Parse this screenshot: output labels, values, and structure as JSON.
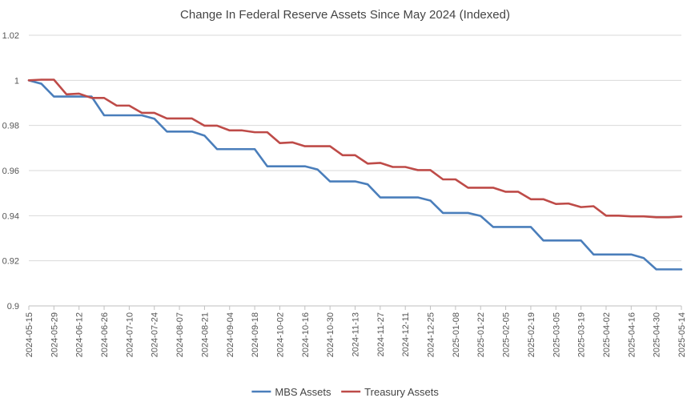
{
  "chart_data": {
    "type": "line",
    "title": "Change In Federal Reserve Assets Since May 2024 (Indexed)",
    "xlabel": "",
    "ylabel": "",
    "ylim": [
      0.9,
      1.02
    ],
    "yticks": [
      "0.9",
      "0.92",
      "0.94",
      "0.96",
      "0.98",
      "1",
      "1.02"
    ],
    "grid": "horizontal",
    "legend_position": "bottom",
    "x_tick_labels": [
      "2024-05-15",
      "2024-05-29",
      "2024-06-12",
      "2024-06-26",
      "2024-07-10",
      "2024-07-24",
      "2024-08-07",
      "2024-08-21",
      "2024-09-04",
      "2024-09-18",
      "2024-10-02",
      "2024-10-16",
      "2024-10-30",
      "2024-11-13",
      "2024-11-27",
      "2024-12-11",
      "2024-12-25",
      "2025-01-08",
      "2025-01-22",
      "2025-02-05",
      "2025-02-19",
      "2025-03-05",
      "2025-03-19",
      "2025-04-02",
      "2025-04-16",
      "2025-04-30",
      "2025-05-14"
    ],
    "x": [
      "2024-05-15",
      "2024-05-22",
      "2024-05-29",
      "2024-06-05",
      "2024-06-12",
      "2024-06-19",
      "2024-06-26",
      "2024-07-03",
      "2024-07-10",
      "2024-07-17",
      "2024-07-24",
      "2024-07-31",
      "2024-08-07",
      "2024-08-14",
      "2024-08-21",
      "2024-08-28",
      "2024-09-04",
      "2024-09-11",
      "2024-09-18",
      "2024-09-25",
      "2024-10-02",
      "2024-10-09",
      "2024-10-16",
      "2024-10-23",
      "2024-10-30",
      "2024-11-06",
      "2024-11-13",
      "2024-11-20",
      "2024-11-27",
      "2024-12-04",
      "2024-12-11",
      "2024-12-18",
      "2024-12-25",
      "2025-01-01",
      "2025-01-08",
      "2025-01-15",
      "2025-01-22",
      "2025-01-29",
      "2025-02-05",
      "2025-02-12",
      "2025-02-19",
      "2025-02-26",
      "2025-03-05",
      "2025-03-12",
      "2025-03-19",
      "2025-03-26",
      "2025-04-02",
      "2025-04-09",
      "2025-04-16",
      "2025-04-23",
      "2025-04-30",
      "2025-05-07",
      "2025-05-14"
    ],
    "series": [
      {
        "name": "MBS Assets",
        "color": "#4a7ebb",
        "values": [
          1.0,
          0.9985,
          0.9928,
          0.9928,
          0.9928,
          0.9928,
          0.9845,
          0.9845,
          0.9845,
          0.9845,
          0.983,
          0.9773,
          0.9773,
          0.9773,
          0.9755,
          0.9695,
          0.9695,
          0.9695,
          0.9695,
          0.9619,
          0.9619,
          0.9619,
          0.9619,
          0.9605,
          0.9552,
          0.9552,
          0.9552,
          0.9539,
          0.9481,
          0.9481,
          0.9481,
          0.9481,
          0.9467,
          0.9412,
          0.9412,
          0.9412,
          0.9399,
          0.935,
          0.935,
          0.935,
          0.935,
          0.929,
          0.929,
          0.929,
          0.929,
          0.9228,
          0.9228,
          0.9228,
          0.9228,
          0.9212,
          0.9162,
          0.9162,
          0.9162
        ]
      },
      {
        "name": "Treasury Assets",
        "color": "#be4b48",
        "values": [
          1.0,
          1.0003,
          1.0003,
          0.9938,
          0.9941,
          0.9922,
          0.9922,
          0.9888,
          0.9888,
          0.9856,
          0.9856,
          0.9831,
          0.9831,
          0.9831,
          0.9799,
          0.9799,
          0.9778,
          0.9778,
          0.977,
          0.977,
          0.9722,
          0.9725,
          0.9708,
          0.9708,
          0.9708,
          0.9668,
          0.9668,
          0.9631,
          0.9634,
          0.9616,
          0.9616,
          0.9602,
          0.9602,
          0.9561,
          0.9561,
          0.9524,
          0.9524,
          0.9524,
          0.9506,
          0.9506,
          0.9473,
          0.9473,
          0.9452,
          0.9454,
          0.9438,
          0.9442,
          0.94,
          0.94,
          0.9397,
          0.9397,
          0.9393,
          0.9393,
          0.9396
        ]
      }
    ]
  }
}
